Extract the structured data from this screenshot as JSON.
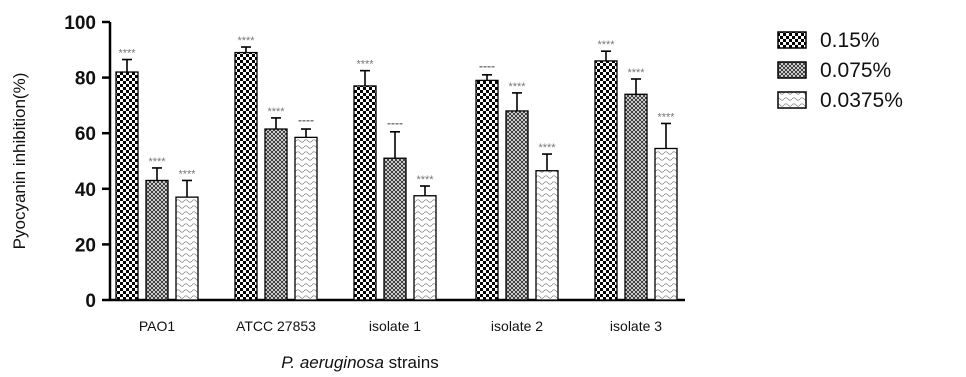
{
  "chart_data": {
    "type": "bar",
    "title": "",
    "ylabel": "Pyocyanin inhibition(%)",
    "xlabel_italic": "P. aeruginosa",
    "xlabel_rest": " strains",
    "ylim": [
      0,
      100
    ],
    "yticks": [
      "0",
      "20",
      "40",
      "60",
      "80",
      "100"
    ],
    "categories": [
      "PAO1",
      "ATCC 27853",
      "isolate 1",
      "isolate 2",
      "isolate 3"
    ],
    "legend_position": "top-right",
    "grid": false,
    "series": [
      {
        "name": "0.15%",
        "values": [
          82,
          89,
          77,
          79,
          86
        ],
        "errors": [
          4.5,
          2,
          5.5,
          2,
          3.5
        ],
        "significance": [
          "****",
          "****",
          "****",
          "----",
          "****"
        ]
      },
      {
        "name": "0.075%",
        "values": [
          43,
          61.5,
          51,
          68,
          74
        ],
        "errors": [
          4.5,
          4,
          9.5,
          6.5,
          5.5
        ],
        "significance": [
          "****",
          "****",
          "----",
          "****",
          "****"
        ]
      },
      {
        "name": "0.0375%",
        "values": [
          37,
          58.5,
          37.5,
          46.5,
          54.5
        ],
        "errors": [
          6,
          3,
          3.5,
          6,
          9
        ],
        "significance": [
          "****",
          "----",
          "****",
          "****",
          "****"
        ]
      }
    ]
  }
}
